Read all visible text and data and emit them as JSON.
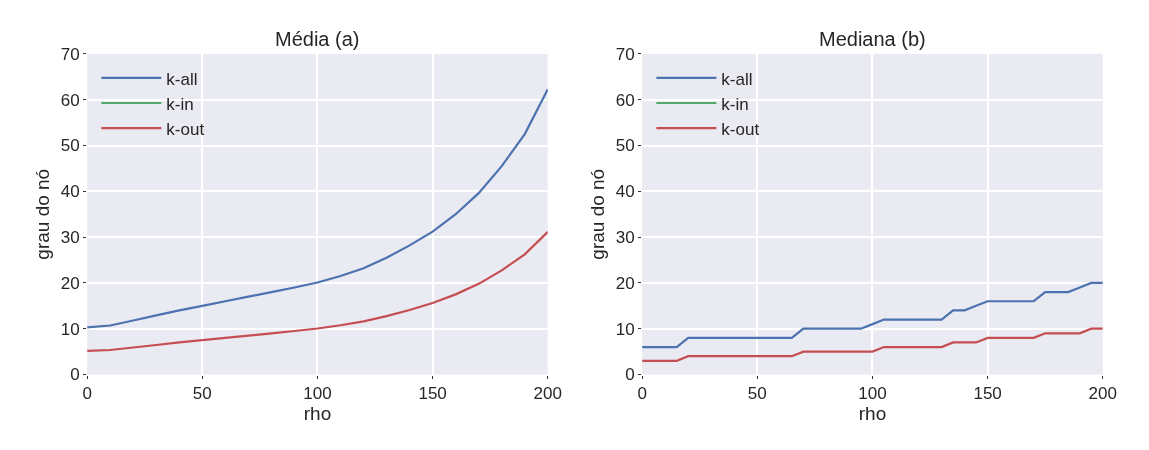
{
  "chart_data": [
    {
      "type": "line",
      "title": "Média (a)",
      "xlabel": "rho",
      "ylabel": "grau do nó",
      "x": [
        0,
        10,
        20,
        30,
        40,
        50,
        60,
        70,
        80,
        90,
        100,
        110,
        120,
        130,
        140,
        150,
        160,
        170,
        180,
        190,
        200
      ],
      "series": [
        {
          "name": "k-all",
          "color": "#4c72b0",
          "values": [
            10.3,
            10.7,
            11.8,
            12.9,
            14,
            15,
            16,
            17,
            18,
            19,
            20.1,
            21.5,
            23.2,
            25.5,
            28.2,
            31.2,
            35,
            39.6,
            45.5,
            52.5,
            62.3
          ]
        },
        {
          "name": "k-in",
          "color": "#55a868",
          "values": [
            null,
            null,
            null,
            null,
            null,
            null,
            null,
            null,
            null,
            null,
            null,
            null,
            null,
            null,
            null,
            null,
            null,
            null,
            null,
            null,
            null
          ]
        },
        {
          "name": "k-out",
          "color": "#c44e52",
          "values": [
            5.15,
            5.35,
            5.9,
            6.45,
            7,
            7.5,
            8,
            8.5,
            9,
            9.5,
            10.05,
            10.75,
            11.6,
            12.75,
            14.1,
            15.6,
            17.5,
            19.8,
            22.75,
            26.25,
            31.15
          ]
        }
      ],
      "xlim": [
        0,
        200
      ],
      "xticks": [
        0,
        50,
        100,
        150,
        200
      ],
      "ylim": [
        0,
        70
      ],
      "yticks": [
        0,
        10,
        20,
        30,
        40,
        50,
        60,
        70
      ],
      "grid": true,
      "legend": "top left"
    },
    {
      "type": "line",
      "title": "Mediana (b)",
      "xlabel": "rho",
      "ylabel": "grau do nó",
      "x": [
        0,
        5,
        10,
        15,
        20,
        25,
        30,
        35,
        40,
        45,
        50,
        55,
        60,
        65,
        70,
        75,
        80,
        85,
        90,
        95,
        100,
        105,
        110,
        115,
        120,
        125,
        130,
        135,
        140,
        145,
        150,
        155,
        160,
        165,
        170,
        175,
        180,
        185,
        190,
        195,
        200
      ],
      "series": [
        {
          "name": "k-all",
          "color": "#4c72b0",
          "values": [
            6,
            6,
            6,
            6,
            8,
            8,
            8,
            8,
            8,
            8,
            8,
            8,
            8,
            8,
            10,
            10,
            10,
            10,
            10,
            10,
            11,
            12,
            12,
            12,
            12,
            12,
            12,
            14,
            14,
            15,
            16,
            16,
            16,
            16,
            16,
            18,
            18,
            18,
            19,
            20,
            20
          ]
        },
        {
          "name": "k-in",
          "color": "#55a868",
          "values": [
            null,
            null,
            null,
            null,
            null,
            null,
            null,
            null,
            null,
            null,
            null,
            null,
            null,
            null,
            null,
            null,
            null,
            null,
            null,
            null,
            null,
            null,
            null,
            null,
            null,
            null,
            null,
            null,
            null,
            null,
            null,
            null,
            null,
            null,
            null,
            null,
            null,
            null,
            null,
            null,
            null
          ]
        },
        {
          "name": "k-out",
          "color": "#c44e52",
          "values": [
            3,
            3,
            3,
            3,
            4,
            4,
            4,
            4,
            4,
            4,
            4,
            4,
            4,
            4,
            5,
            5,
            5,
            5,
            5,
            5,
            5,
            6,
            6,
            6,
            6,
            6,
            6,
            7,
            7,
            7,
            8,
            8,
            8,
            8,
            8,
            9,
            9,
            9,
            9,
            10,
            10
          ]
        }
      ],
      "xlim": [
        0,
        200
      ],
      "xticks": [
        0,
        50,
        100,
        150,
        200
      ],
      "ylim": [
        0,
        70
      ],
      "yticks": [
        0,
        10,
        20,
        30,
        40,
        50,
        60,
        70
      ],
      "grid": true,
      "legend": "top left"
    }
  ]
}
